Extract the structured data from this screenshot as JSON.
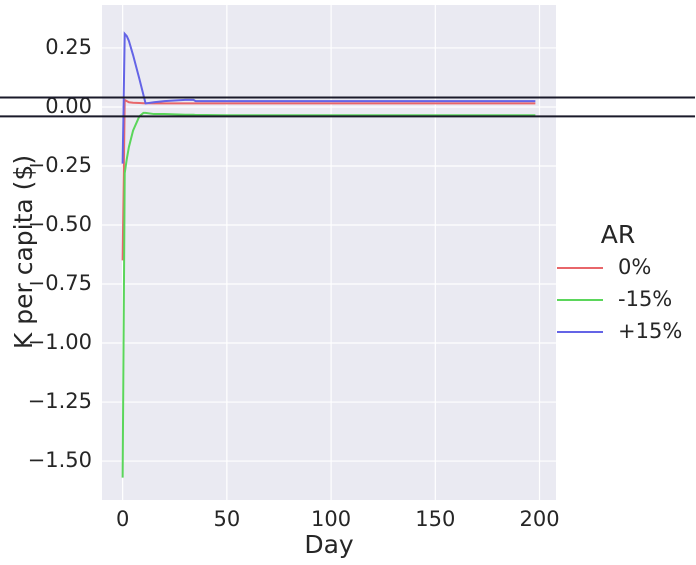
{
  "chart_data": {
    "type": "line",
    "xlabel": "Day",
    "ylabel": "K per capita ($)",
    "x": [
      0,
      1,
      2,
      3,
      5,
      8,
      10,
      11,
      15,
      20,
      30,
      34,
      35,
      40,
      50,
      60,
      80,
      100,
      150,
      198
    ],
    "series": [
      {
        "name": "0%",
        "color": "#e8666a",
        "values": [
          -0.65,
          0.03,
          0.025,
          0.02,
          0.018,
          0.017,
          0.016,
          0.016,
          0.015,
          0.015,
          0.015,
          0.015,
          0.015,
          0.015,
          0.015,
          0.015,
          0.015,
          0.015,
          0.015,
          0.015
        ]
      },
      {
        "name": "-15%",
        "color": "#5bd65b",
        "values": [
          -1.57,
          -0.28,
          -0.22,
          -0.17,
          -0.1,
          -0.04,
          -0.025,
          -0.025,
          -0.03,
          -0.03,
          -0.033,
          -0.033,
          -0.034,
          -0.034,
          -0.035,
          -0.035,
          -0.035,
          -0.035,
          -0.035,
          -0.035
        ]
      },
      {
        "name": "+15%",
        "color": "#6464e6",
        "values": [
          -0.24,
          0.31,
          0.3,
          0.28,
          0.22,
          0.12,
          0.05,
          0.015,
          0.02,
          0.025,
          0.03,
          0.03,
          0.025,
          0.025,
          0.025,
          0.025,
          0.025,
          0.025,
          0.025,
          0.025
        ]
      }
    ],
    "hlines": [
      0.04,
      -0.04
    ],
    "legend_title": "AR",
    "legend": "outside right",
    "xlim": [
      -9.9,
      207.9
    ],
    "xticks": [
      0,
      50,
      100,
      150,
      200
    ],
    "ylim": [
      -1.665,
      0.432
    ],
    "yticks": [
      0.25,
      {
        "value": 0,
        "label": "0.00"
      },
      {
        "value": -0.25,
        "label": "−0.25"
      },
      {
        "value": -0.5,
        "label": "−0.50"
      },
      {
        "value": -0.75,
        "label": "−0.75"
      },
      {
        "value": -1,
        "label": "−1.00"
      },
      {
        "value": -1.25,
        "label": "−1.25"
      },
      {
        "value": -1.5,
        "label": "−1.50"
      }
    ],
    "grid": true
  }
}
